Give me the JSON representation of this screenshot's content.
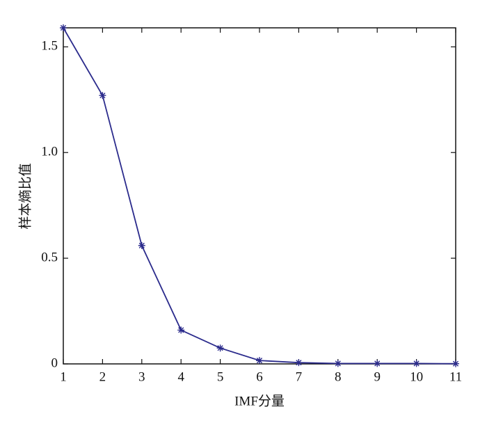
{
  "chart_data": {
    "type": "line",
    "xlabel": "IMF分量",
    "ylabel": "样本熵比值",
    "x": [
      1,
      2,
      3,
      4,
      5,
      6,
      7,
      8,
      9,
      10,
      11
    ],
    "series": [
      {
        "name": "样本熵比值",
        "color": "#2b2b8c",
        "values": [
          1.59,
          1.27,
          0.56,
          0.16,
          0.075,
          0.016,
          0.006,
          0.002,
          0.002,
          0.002,
          0.001
        ]
      }
    ],
    "xlim": [
      1,
      11
    ],
    "xticks": [
      1,
      2,
      3,
      4,
      5,
      6,
      7,
      8,
      9,
      10,
      11
    ],
    "ylim": [
      0,
      1.59
    ],
    "yticks": [
      0,
      0.5,
      {
        "value": 1,
        "label": "1.0"
      },
      1.5
    ],
    "grid": false,
    "marker": "asterisk"
  }
}
